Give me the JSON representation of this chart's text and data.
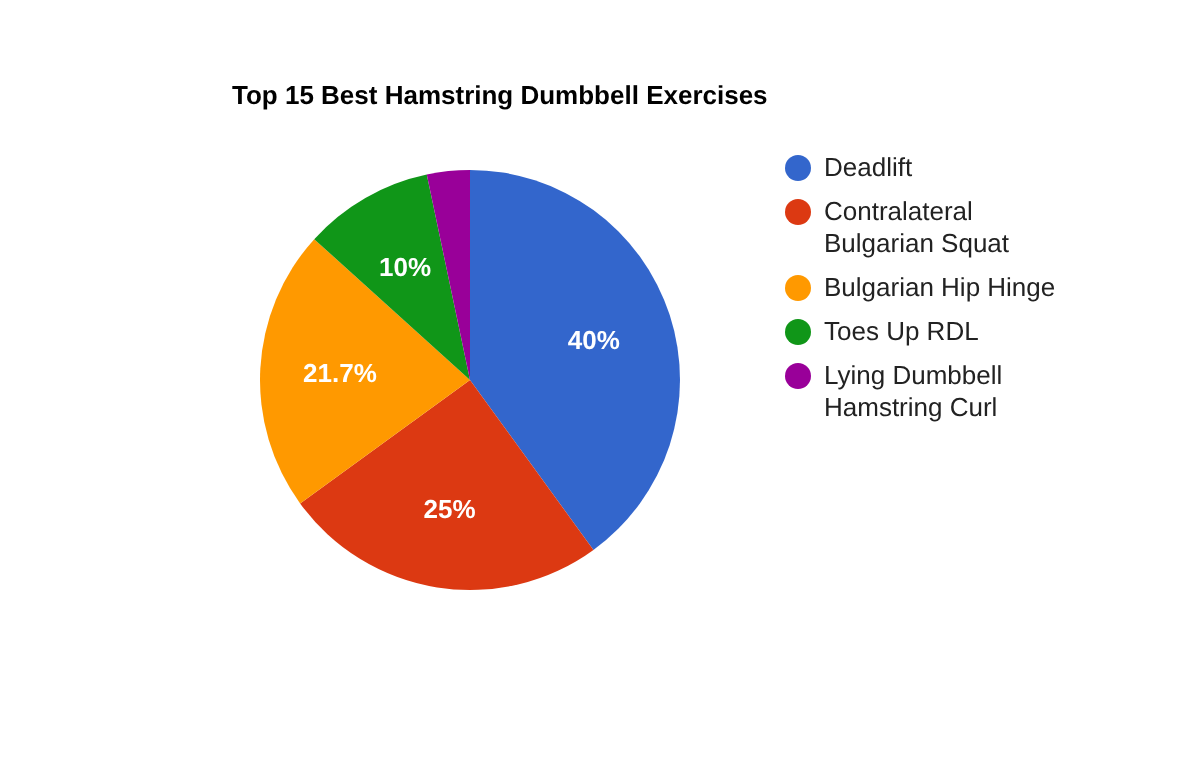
{
  "chart_data": {
    "type": "pie",
    "title": "Top 15 Best Hamstring Dumbbell Exercises",
    "categories": [
      "Deadlift",
      "Contralateral Bulgarian Squat",
      "Bulgarian Hip Hinge",
      "Toes Up RDL",
      "Lying Dumbbell Hamstring Curl"
    ],
    "values": [
      40,
      25,
      21.7,
      10,
      3.3
    ],
    "colors": [
      "#3366cc",
      "#dc3912",
      "#ff9900",
      "#109618",
      "#990099"
    ],
    "value_labels": [
      "40%",
      "25%",
      "21.7%",
      "10%",
      null
    ],
    "legend": "right"
  }
}
